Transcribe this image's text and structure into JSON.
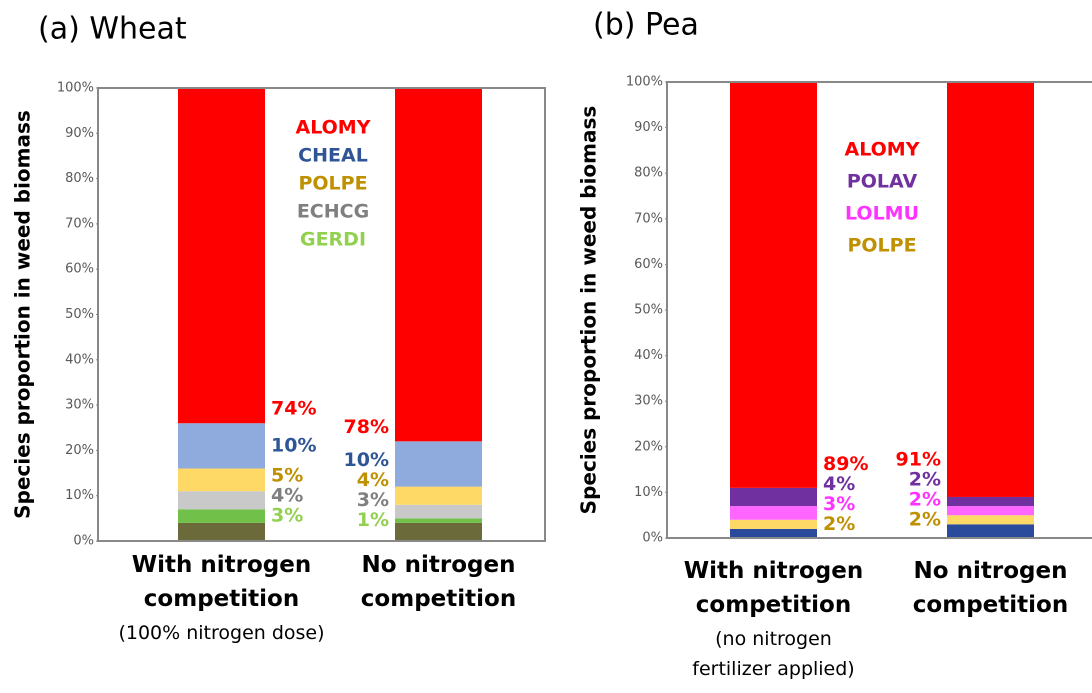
{
  "chart_data": [
    {
      "type": "stacked_bar",
      "title": "(a) Wheat",
      "y_label": "Species proportion in weed biomass",
      "categories": [
        "With nitrogen competition",
        "No nitrogen competition"
      ],
      "category_notes": [
        "(100% nitrogen dose)",
        null
      ],
      "ylim": [
        0,
        100
      ],
      "yticks": [
        {
          "value": 0,
          "label": "0%"
        },
        {
          "value": 10,
          "label": "10%"
        },
        {
          "value": 20,
          "label": "20%"
        },
        {
          "value": 30,
          "label": "30%"
        },
        {
          "value": 40,
          "label": "40%"
        },
        {
          "value": 50,
          "label": "50%"
        },
        {
          "value": 60,
          "label": "60%"
        },
        {
          "value": 70,
          "label": "70%"
        },
        {
          "value": 80,
          "label": "80%"
        },
        {
          "value": 90,
          "label": "90%"
        },
        {
          "value": 100,
          "label": "100%"
        }
      ],
      "legend_order": [
        "ALOMY",
        "CHEAL",
        "POLPE",
        "ECHCG",
        "GERDI"
      ],
      "series": [
        {
          "color": "#6b6a3a",
          "values": [
            4,
            4
          ]
        },
        {
          "name": "GERDI",
          "color": "#70c04a",
          "label_color": "#92d050",
          "values": [
            3,
            1
          ],
          "value_labels": [
            "3%",
            "1%"
          ]
        },
        {
          "name": "ECHCG",
          "color": "#c9c9c9",
          "label_color": "#7f7f7f",
          "values": [
            4,
            3
          ],
          "value_labels": [
            "4%",
            "3%"
          ]
        },
        {
          "name": "POLPE",
          "color": "#ffd966",
          "label_color": "#bf9000",
          "values": [
            5,
            4
          ],
          "value_labels": [
            "5%",
            "4%"
          ]
        },
        {
          "name": "CHEAL",
          "color": "#8faadc",
          "label_color": "#2f5597",
          "values": [
            10,
            10
          ],
          "value_labels": [
            "10%",
            "10%"
          ]
        },
        {
          "name": "ALOMY",
          "color": "#ff0000",
          "label_color": "#ff0000",
          "values": [
            74,
            78
          ],
          "value_labels": [
            "74%",
            "78%"
          ]
        }
      ]
    },
    {
      "type": "stacked_bar",
      "title": "(b) Pea",
      "y_label": "Species proportion in weed biomass",
      "categories": [
        "With nitrogen competition",
        "No nitrogen competition"
      ],
      "category_notes": [
        "(no nitrogen fertilizer applied)",
        null
      ],
      "ylim": [
        0,
        100
      ],
      "yticks": [
        {
          "value": 0,
          "label": "0%"
        },
        {
          "value": 10,
          "label": "10%"
        },
        {
          "value": 20,
          "label": "20%"
        },
        {
          "value": 30,
          "label": "30%"
        },
        {
          "value": 40,
          "label": "40%"
        },
        {
          "value": 50,
          "label": "50%"
        },
        {
          "value": 60,
          "label": "60%"
        },
        {
          "value": 70,
          "label": "70%"
        },
        {
          "value": 80,
          "label": "80%"
        },
        {
          "value": 90,
          "label": "90%"
        },
        {
          "value": 100,
          "label": "100%"
        }
      ],
      "legend_order": [
        "ALOMY",
        "POLAV",
        "LOLMU",
        "POLPE"
      ],
      "series": [
        {
          "color": "#2a4a9c",
          "values": [
            2,
            3
          ]
        },
        {
          "name": "POLPE",
          "color": "#ffd966",
          "label_color": "#bf9000",
          "values": [
            2,
            2
          ],
          "value_labels": [
            "2%",
            "2%"
          ]
        },
        {
          "name": "LOLMU",
          "color": "#ff66ff",
          "label_color": "#ff33ff",
          "values": [
            3,
            2
          ],
          "value_labels": [
            "3%",
            "2%"
          ]
        },
        {
          "name": "POLAV",
          "color": "#7030a0",
          "label_color": "#7030a0",
          "values": [
            4,
            2
          ],
          "value_labels": [
            "4%",
            "2%"
          ]
        },
        {
          "name": "ALOMY",
          "color": "#ff0000",
          "label_color": "#ff0000",
          "values": [
            89,
            91
          ],
          "value_labels": [
            "89%",
            "91%"
          ]
        }
      ]
    }
  ]
}
